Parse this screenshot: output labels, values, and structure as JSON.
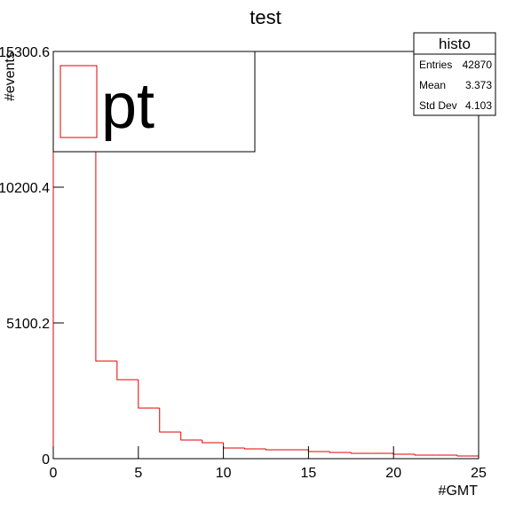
{
  "chart_data": {
    "type": "histogram",
    "title": "test",
    "xlabel": "#GMT",
    "ylabel": "#events",
    "bins": [
      0,
      1.25,
      2.5,
      3.75,
      5,
      6.25,
      7.5,
      8.75,
      10,
      11.25,
      12.5,
      13.75,
      15,
      16.25,
      17.5,
      18.75,
      20,
      21.25,
      22.5,
      23.75,
      25
    ],
    "values": [
      14000,
      14572,
      3667,
      2967,
      1900,
      1000,
      700,
      600,
      400,
      367,
      333,
      333,
      267,
      233,
      200,
      200,
      167,
      133,
      133,
      100
    ],
    "color": "#e00000",
    "xlim": [
      0,
      25
    ],
    "xticks": [
      0,
      5,
      10,
      15,
      20,
      25
    ],
    "ylim": [
      0,
      15300.6
    ],
    "yticks": [
      0,
      5100.2,
      10200.4,
      15300.6
    ],
    "legend": {
      "entries": [
        "pt"
      ],
      "position": "upper left"
    },
    "stats": {
      "title": "histo",
      "rows": [
        [
          "Entries",
          "42870"
        ],
        [
          "Mean",
          "3.373"
        ],
        [
          "Std Dev",
          "4.103"
        ]
      ]
    }
  }
}
